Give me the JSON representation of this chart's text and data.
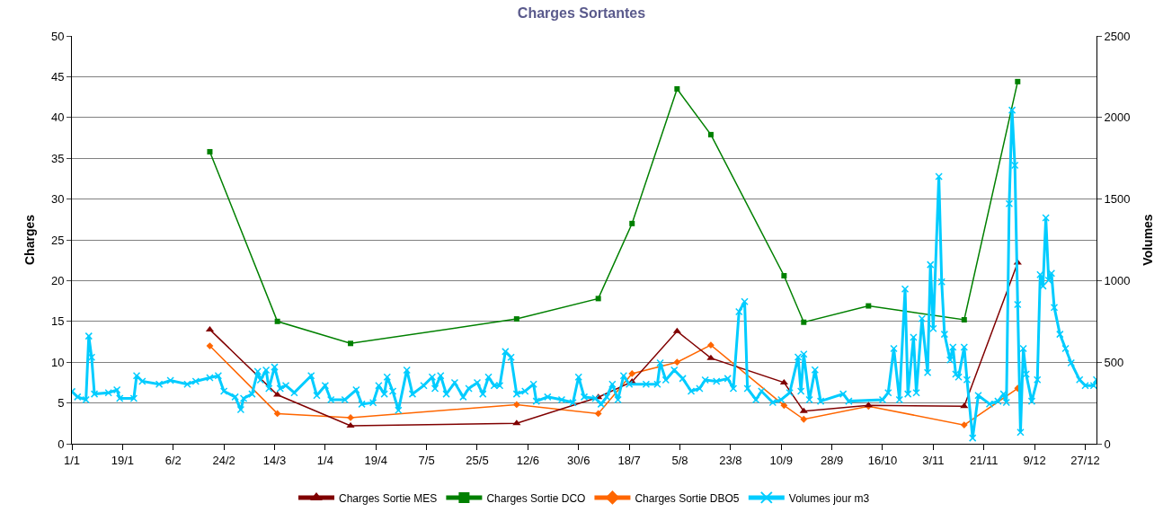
{
  "chart_data": {
    "type": "line",
    "title": "Charges Sortantes",
    "ylabel": "Charges",
    "y2label": "Volumes",
    "x": [
      "--02-19",
      "--03-15",
      "--04-10",
      "--06-08",
      "--07-07",
      "--07-19",
      "--08-04",
      "--08-16",
      "--09-11",
      "--09-18",
      "--10-11",
      "--11-14",
      "--12-03"
    ],
    "series": [
      {
        "name": "Charges Sortie MES",
        "color": "#800000",
        "marker": "triangle",
        "values": [
          14.0,
          6.0,
          2.2,
          2.5,
          5.7,
          7.6,
          13.8,
          10.5,
          7.5,
          4.0,
          4.7,
          4.6,
          22.2
        ]
      },
      {
        "name": "Charges Sortie DCO",
        "color": "#008000",
        "marker": "square",
        "values": [
          35.8,
          15.0,
          12.3,
          15.3,
          17.8,
          27.0,
          43.5,
          37.9,
          20.6,
          14.9,
          16.9,
          15.2,
          44.4
        ]
      },
      {
        "name": "Charges Sortie DBO5",
        "color": "#ff6600",
        "marker": "diamond",
        "values": [
          12.0,
          3.7,
          3.2,
          4.8,
          3.7,
          8.6,
          10.0,
          12.1,
          4.7,
          3.0,
          4.6,
          2.3,
          6.8
        ]
      },
      {
        "name": "Volumes jour m3",
        "color": "#00ccff",
        "marker": "cross",
        "axis": "y2",
        "x": [
          "--01-01",
          "--01-03",
          "--01-06",
          "--01-07",
          "--01-08",
          "--01-09",
          "--01-14",
          "--01-17",
          "--01-18",
          "--01-23",
          "--01-24",
          "--01-26",
          "--02-01",
          "--02-05",
          "--02-11",
          "--02-14",
          "--02-19",
          "--02-22",
          "--02-24",
          "--02-28",
          "--03-02",
          "--03-03",
          "--03-06",
          "--03-08",
          "--03-09",
          "--03-11",
          "--03-12",
          "--03-14",
          "--03-16",
          "--03-18",
          "--03-21",
          "--03-27",
          "--03-29",
          "--04-01",
          "--04-03",
          "--04-08",
          "--04-12",
          "--04-14",
          "--04-18",
          "--04-20",
          "--04-22",
          "--04-23",
          "--04-25",
          "--04-27",
          "--04-30",
          "--05-02",
          "--05-06",
          "--05-09",
          "--05-10",
          "--05-12",
          "--05-14",
          "--05-17",
          "--05-20",
          "--05-22",
          "--05-25",
          "--05-27",
          "--05-29",
          "--05-31",
          "--06-02",
          "--06-04",
          "--06-06",
          "--06-08",
          "--06-11",
          "--06-14",
          "--06-15",
          "--06-19",
          "--06-24",
          "--06-28",
          "--06-30",
          "--07-02",
          "--07-06",
          "--07-08",
          "--07-10",
          "--07-12",
          "--07-14",
          "--07-16",
          "--07-18",
          "--07-24",
          "--07-28",
          "--07-29",
          "--07-31",
          "--08-03",
          "--08-06",
          "--08-09",
          "--08-12",
          "--08-14",
          "--08-18",
          "--08-22",
          "--08-24",
          "--08-26",
          "--08-28",
          "--08-29",
          "--09-01",
          "--09-03",
          "--09-07",
          "--09-10",
          "--09-13",
          "--09-16",
          "--09-17",
          "--09-18",
          "--09-20",
          "--09-22",
          "--09-24",
          "--10-02",
          "--10-04",
          "--10-16",
          "--10-18",
          "--10-20",
          "--10-22",
          "--10-24",
          "--10-25",
          "--10-27",
          "--10-28",
          "--10-30",
          "--11-01",
          "--11-02",
          "--11-03",
          "--11-05",
          "--11-06",
          "--11-07",
          "--11-09",
          "--11-10",
          "--11-11",
          "--11-12",
          "--11-14",
          "--11-15",
          "--11-17",
          "--11-19",
          "--11-23",
          "--11-26",
          "--11-28",
          "--11-29",
          "--11-30",
          "--12-01",
          "--12-02",
          "--12-03",
          "--12-04",
          "--12-05",
          "--12-06",
          "--12-08",
          "--12-10",
          "--12-11",
          "--12-12",
          "--12-13",
          "--12-14",
          "--12-15",
          "--12-16",
          "--12-18",
          "--12-20",
          "--12-22",
          "--12-25",
          "--12-27",
          "--12-30",
          "--12-31"
        ],
        "values": [
          320,
          287,
          270,
          660,
          530,
          305,
          313,
          330,
          278,
          278,
          417,
          383,
          365,
          388,
          365,
          383,
          405,
          417,
          322,
          287,
          209,
          278,
          305,
          443,
          391,
          452,
          339,
          470,
          339,
          357,
          313,
          417,
          296,
          357,
          270,
          270,
          330,
          243,
          252,
          357,
          305,
          409,
          322,
          205,
          452,
          305,
          357,
          409,
          339,
          417,
          305,
          374,
          287,
          339,
          374,
          305,
          409,
          357,
          357,
          565,
          530,
          305,
          322,
          365,
          261,
          287,
          270,
          252,
          409,
          287,
          278,
          243,
          287,
          365,
          270,
          417,
          365,
          365,
          365,
          496,
          391,
          452,
          400,
          322,
          339,
          391,
          383,
          400,
          339,
          809,
          871,
          339,
          270,
          322,
          253,
          270,
          313,
          531,
          322,
          549,
          270,
          453,
          261,
          305,
          261,
          270,
          313,
          584,
          270,
          949,
          305,
          653,
          313,
          767,
          436,
          1098,
          706,
          1638,
          993,
          671,
          514,
          592,
          427,
          409,
          592,
          392,
          35,
          296,
          244,
          261,
          305,
          253,
          1472,
          2045,
          1707,
          854,
          70,
          584,
          427,
          261,
          392,
          1037,
          967,
          1385,
          1002,
          1045,
          836,
          671,
          584,
          496,
          392,
          357,
          357,
          392
        ]
      }
    ],
    "xlim": [
      "--01-01",
      "--12-31"
    ],
    "xticks": [
      {
        "value": "--01-01",
        "label": "1/1"
      },
      {
        "value": "--01-19",
        "label": "19/1"
      },
      {
        "value": "--02-06",
        "label": "6/2"
      },
      {
        "value": "--02-24",
        "label": "24/2"
      },
      {
        "value": "--03-14",
        "label": "14/3"
      },
      {
        "value": "--04-01",
        "label": "1/4"
      },
      {
        "value": "--04-19",
        "label": "19/4"
      },
      {
        "value": "--05-07",
        "label": "7/5"
      },
      {
        "value": "--05-25",
        "label": "25/5"
      },
      {
        "value": "--06-12",
        "label": "12/6"
      },
      {
        "value": "--06-30",
        "label": "30/6"
      },
      {
        "value": "--07-18",
        "label": "18/7"
      },
      {
        "value": "--08-05",
        "label": "5/8"
      },
      {
        "value": "--08-23",
        "label": "23/8"
      },
      {
        "value": "--09-10",
        "label": "10/9"
      },
      {
        "value": "--09-28",
        "label": "28/9"
      },
      {
        "value": "--10-16",
        "label": "16/10"
      },
      {
        "value": "--11-03",
        "label": "3/11"
      },
      {
        "value": "--11-21",
        "label": "21/11"
      },
      {
        "value": "--12-09",
        "label": "9/12"
      },
      {
        "value": "--12-27",
        "label": "27/12"
      }
    ],
    "ylim": [
      0,
      50
    ],
    "yticks": [
      0,
      5,
      10,
      15,
      20,
      25,
      30,
      35,
      40,
      45,
      50
    ],
    "y2lim": [
      0,
      2500
    ],
    "y2ticks": [
      0,
      500,
      1000,
      1500,
      2000,
      2500
    ],
    "grid": "y",
    "legend": "bottom"
  }
}
